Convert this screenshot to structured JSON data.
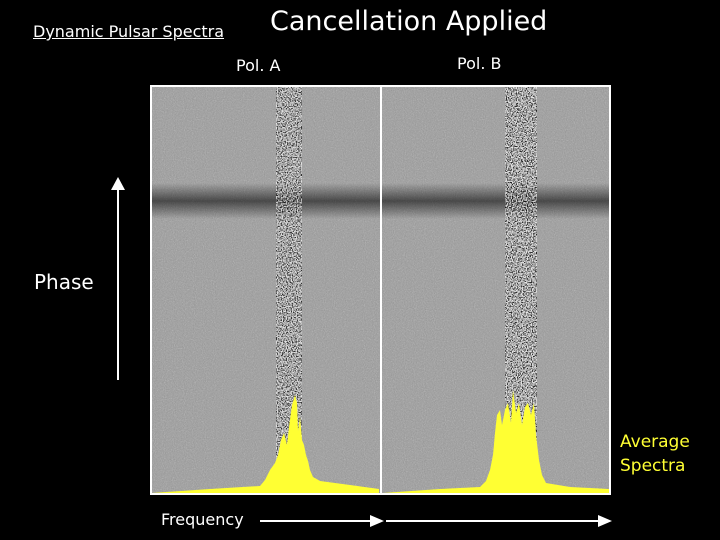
{
  "header": {
    "subtitle": "Dynamic Pulsar Spectra",
    "title": "Cancellation Applied"
  },
  "panels": [
    {
      "label": "Pol.  A"
    },
    {
      "label": "Pol.  B"
    }
  ],
  "axes": {
    "y_label": "Phase",
    "x_label": "Frequency"
  },
  "overlay": {
    "line1": "Average",
    "line2": "Spectra",
    "color": "#ffff33"
  },
  "colors": {
    "background": "#000000",
    "noise_gray": "#9a9a9a",
    "frame": "#ffffff",
    "spectrum_fill": "#ffff33"
  }
}
